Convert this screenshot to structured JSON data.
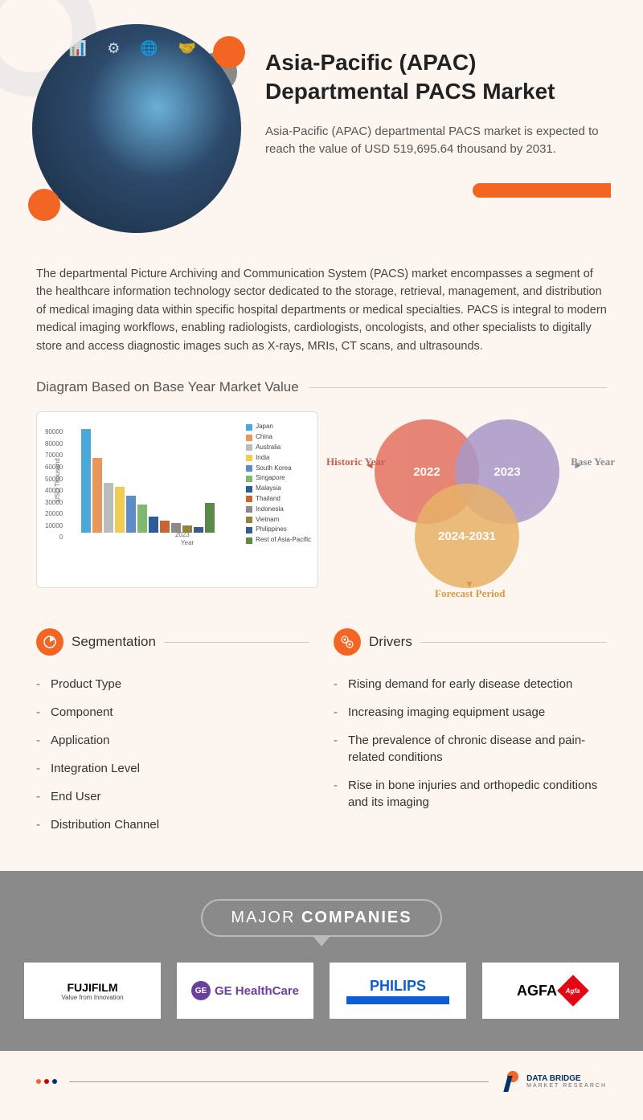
{
  "header": {
    "title": "Asia-Pacific (APAC) Departmental PACS Market",
    "subtitle": "Asia-Pacific (APAC) departmental PACS market is expected to reach the value of USD 519,695.64 thousand by 2031."
  },
  "description": "The departmental Picture Archiving and Communication System (PACS) market encompasses a segment of the healthcare information technology sector dedicated to the storage, retrieval, management, and distribution of medical imaging data within specific hospital departments or medical specialties. PACS is integral to modern medical imaging workflows, enabling radiologists, cardiologists, oncologists, and other specialists to digitally store and access diagnostic images such as X-rays, MRIs, CT scans, and ultrasounds.",
  "diagram_title": "Diagram Based on Base Year Market Value",
  "chart": {
    "type": "bar",
    "y_label": "USD Thousand",
    "x_label": "Year",
    "x_category": "2023",
    "y_ticks": [
      "90000",
      "80000",
      "70000",
      "60000",
      "50000",
      "40000",
      "30000",
      "20000",
      "10000",
      "0"
    ],
    "ylim_max": 90000,
    "series": [
      {
        "name": "Japan",
        "color": "#4ca8d8",
        "value": 83000
      },
      {
        "name": "China",
        "color": "#e8965a",
        "value": 60000
      },
      {
        "name": "Australia",
        "color": "#bcbcbc",
        "value": 40000
      },
      {
        "name": "India",
        "color": "#f0cd52",
        "value": 37000
      },
      {
        "name": "South Korea",
        "color": "#5d8dc8",
        "value": 30000
      },
      {
        "name": "Singapore",
        "color": "#7fb96e",
        "value": 23000
      },
      {
        "name": "Malaysia",
        "color": "#2b5d9b",
        "value": 13000
      },
      {
        "name": "Thailand",
        "color": "#c5672f",
        "value": 10000
      },
      {
        "name": "Indonesia",
        "color": "#8a8a8a",
        "value": 8000
      },
      {
        "name": "Vietnam",
        "color": "#968336",
        "value": 6000
      },
      {
        "name": "Philippines",
        "color": "#3a5c8a",
        "value": 5000
      },
      {
        "name": "Rest of Asia-Pacific",
        "color": "#5a8a47",
        "value": 24000
      }
    ],
    "background_color": "#ffffff",
    "border_color": "#dddddd"
  },
  "venn": {
    "circles": [
      {
        "label": "2022",
        "color": "#e37160",
        "tag": "Historic Year",
        "tag_color": "#cc5e4e"
      },
      {
        "label": "2023",
        "color": "#a998c8",
        "tag": "Base Year",
        "tag_color": "#8a8a9a"
      },
      {
        "label": "2024-2031",
        "color": "#e9b168",
        "tag": "Forecast Period",
        "tag_color": "#d99a3e"
      }
    ]
  },
  "segmentation": {
    "title": "Segmentation",
    "items": [
      "Product Type",
      "Component",
      "Application",
      "Integration Level",
      "End User",
      "Distribution Channel"
    ]
  },
  "drivers": {
    "title": "Drivers",
    "items": [
      "Rising demand for early disease detection",
      "Increasing imaging equipment usage",
      "The prevalence of chronic disease and pain-related conditions",
      "Rise in bone injuries and orthopedic conditions and its imaging"
    ]
  },
  "companies": {
    "heading_light": "MAJOR",
    "heading_bold": "COMPANIES",
    "logos": [
      {
        "name": "FUJIFILM",
        "sub": "Value from Innovation"
      },
      {
        "name": "GE HealthCare"
      },
      {
        "name": "PHILIPS"
      },
      {
        "name": "AGFA"
      }
    ]
  },
  "footer": {
    "brand": "DATA BRIDGE",
    "sub": "MARKET RESEARCH"
  },
  "colors": {
    "accent_orange": "#f26522",
    "bg_cream": "#fdf6f0",
    "grey_panel": "#8a8a8a"
  }
}
